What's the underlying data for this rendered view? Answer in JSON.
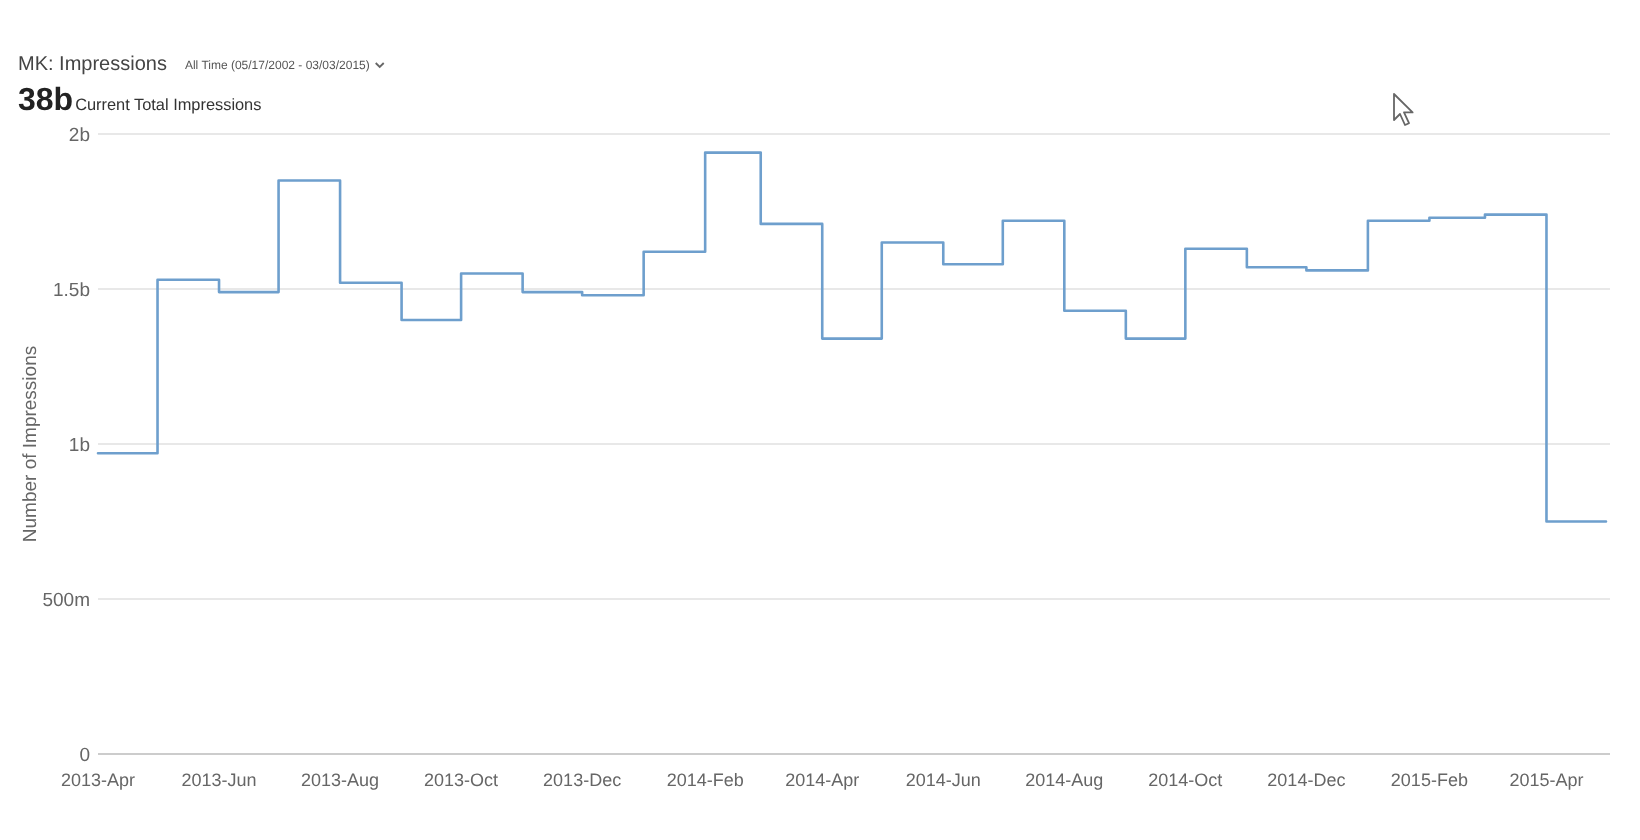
{
  "chart_data": {
    "type": "step",
    "title": "MK: Impressions",
    "subtitle": "All Time (05/17/2002 - 03/03/2015)",
    "ylabel": "Number of Impressions",
    "annotations": [
      "38b",
      "Current Total Impressions"
    ],
    "x": [
      "2013-04",
      "2013-05",
      "2013-06",
      "2013-07",
      "2013-08",
      "2013-09",
      "2013-10",
      "2013-11",
      "2013-12",
      "2014-01",
      "2014-02",
      "2014-03",
      "2014-04",
      "2014-05",
      "2014-06",
      "2014-07",
      "2014-08",
      "2014-09",
      "2014-10",
      "2014-11",
      "2014-12",
      "2015-01",
      "2015-02",
      "2015-03",
      "2015-04",
      "2015-05"
    ],
    "values": [
      970000000,
      1530000000,
      1490000000,
      1850000000,
      1520000000,
      1400000000,
      1550000000,
      1490000000,
      1480000000,
      1620000000,
      1940000000,
      1710000000,
      1340000000,
      1650000000,
      1580000000,
      1720000000,
      1430000000,
      1340000000,
      1630000000,
      1570000000,
      1560000000,
      1720000000,
      1730000000,
      1740000000,
      750000000,
      750000000
    ],
    "color": "#6e9fcd",
    "line_style": "solid",
    "xlim": [
      "2013-04-01",
      "2015-05-01"
    ],
    "xticks": [
      {
        "value": "2013-04",
        "label": "2013-Apr"
      },
      {
        "value": "2013-06",
        "label": "2013-Jun"
      },
      {
        "value": "2013-08",
        "label": "2013-Aug"
      },
      {
        "value": "2013-10",
        "label": "2013-Oct"
      },
      {
        "value": "2013-12",
        "label": "2013-Dec"
      },
      {
        "value": "2014-02",
        "label": "2014-Feb"
      },
      {
        "value": "2014-04",
        "label": "2014-Apr"
      },
      {
        "value": "2014-06",
        "label": "2014-Jun"
      },
      {
        "value": "2014-08",
        "label": "2014-Aug"
      },
      {
        "value": "2014-10",
        "label": "2014-Oct"
      },
      {
        "value": "2014-12",
        "label": "2014-Dec"
      },
      {
        "value": "2015-02",
        "label": "2015-Feb"
      },
      {
        "value": "2015-04",
        "label": "2015-Apr"
      }
    ],
    "ylim": [
      0,
      2000000000
    ],
    "yticks": [
      0,
      {
        "value": 500000000,
        "label": "500m"
      },
      {
        "value": 1000000000,
        "label": "1b"
      },
      {
        "value": 1500000000,
        "label": "1.5b"
      },
      {
        "value": 2000000000,
        "label": "2b"
      }
    ],
    "grid": "y"
  }
}
